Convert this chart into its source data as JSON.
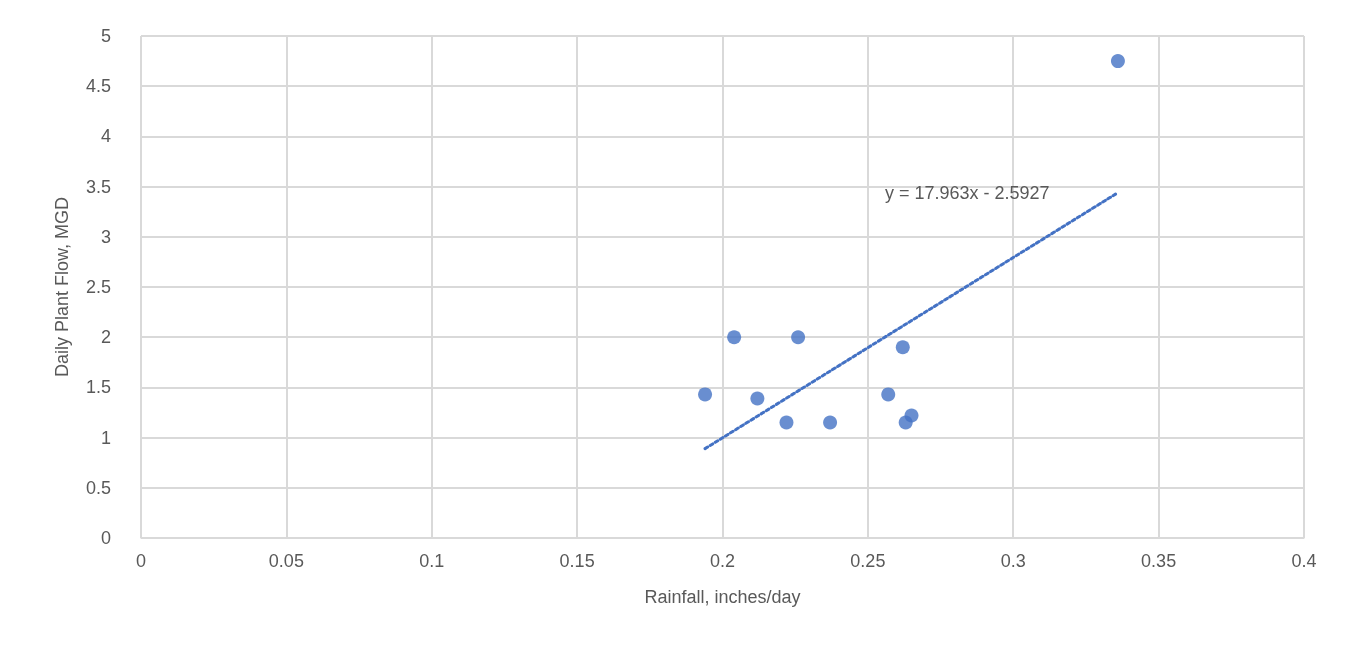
{
  "chart_data": {
    "type": "scatter",
    "xlabel": "Rainfall, inches/day",
    "ylabel": "Daily Plant Flow, MGD",
    "series": [
      {
        "color": "#4472c4",
        "marker": "circle",
        "x": [
          0.194,
          0.204,
          0.212,
          0.222,
          0.226,
          0.237,
          0.257,
          0.262,
          0.263,
          0.265,
          0.336
        ],
        "values": [
          1.43,
          2.0,
          1.39,
          1.15,
          2.0,
          1.15,
          1.43,
          1.9,
          1.15,
          1.22,
          4.75
        ]
      },
      {
        "type": "line",
        "color": "#4472c4",
        "line_style": "dotted",
        "marker": "none",
        "x": [
          0.194,
          0.336
        ],
        "values": [
          0.89,
          3.44
        ]
      }
    ],
    "annotations": [
      "y = 17.963x - 2.5927"
    ],
    "xlim": [
      0,
      0.4
    ],
    "xticks": [
      0,
      0.05,
      0.1,
      0.15,
      0.2,
      0.25,
      0.3,
      0.35,
      0.4
    ],
    "ylim": [
      0,
      5
    ],
    "yticks": [
      0,
      0.5,
      1,
      1.5,
      2,
      2.5,
      3,
      3.5,
      4,
      4.5,
      5
    ],
    "grid": true
  }
}
